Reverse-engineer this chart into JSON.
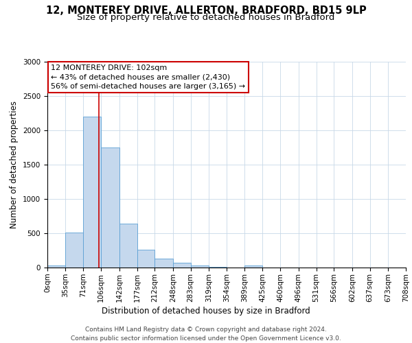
{
  "title1": "12, MONTEREY DRIVE, ALLERTON, BRADFORD, BD15 9LP",
  "title2": "Size of property relative to detached houses in Bradford",
  "xlabel": "Distribution of detached houses by size in Bradford",
  "ylabel": "Number of detached properties",
  "bin_edges": [
    0,
    35,
    71,
    106,
    142,
    177,
    212,
    248,
    283,
    319,
    354,
    389,
    425,
    460,
    496,
    531,
    566,
    602,
    637,
    673,
    708
  ],
  "bin_labels": [
    "0sqm",
    "35sqm",
    "71sqm",
    "106sqm",
    "142sqm",
    "177sqm",
    "212sqm",
    "248sqm",
    "283sqm",
    "319sqm",
    "354sqm",
    "389sqm",
    "425sqm",
    "460sqm",
    "496sqm",
    "531sqm",
    "566sqm",
    "602sqm",
    "637sqm",
    "673sqm",
    "708sqm"
  ],
  "counts": [
    30,
    510,
    2200,
    1750,
    640,
    260,
    130,
    70,
    30,
    10,
    5,
    35,
    5,
    2,
    0,
    0,
    0,
    0,
    0,
    0
  ],
  "bar_color": "#c5d8ed",
  "bar_edge_color": "#5a9fd4",
  "vline_x": 102,
  "vline_color": "#cc0000",
  "annotation_line1": "12 MONTEREY DRIVE: 102sqm",
  "annotation_line2": "← 43% of detached houses are smaller (2,430)",
  "annotation_line3": "56% of semi-detached houses are larger (3,165) →",
  "annotation_box_color": "#ffffff",
  "annotation_box_edge_color": "#cc0000",
  "ylim": [
    0,
    3000
  ],
  "yticks": [
    0,
    500,
    1000,
    1500,
    2000,
    2500,
    3000
  ],
  "footer1": "Contains HM Land Registry data © Crown copyright and database right 2024.",
  "footer2": "Contains public sector information licensed under the Open Government Licence v3.0.",
  "title1_fontsize": 10.5,
  "title2_fontsize": 9.5,
  "axis_label_fontsize": 8.5,
  "tick_fontsize": 7.5,
  "annotation_fontsize": 8,
  "footer_fontsize": 6.5
}
